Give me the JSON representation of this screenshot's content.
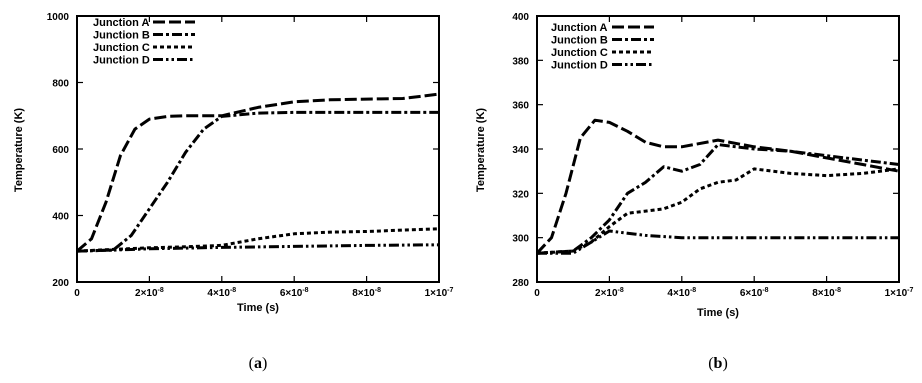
{
  "chart_data": [
    {
      "type": "line",
      "panel_label": "a",
      "xlabel": "Time (s)",
      "ylabel": "Temperature (K)",
      "xlim": [
        0,
        1e-07
      ],
      "ylim": [
        200,
        1000
      ],
      "x_ticks": [
        0,
        2e-08,
        4e-08,
        6e-08,
        8e-08,
        1e-07
      ],
      "x_tick_labels": [
        {
          "mant": "0",
          "exp": ""
        },
        {
          "mant": "2×10",
          "exp": "-8"
        },
        {
          "mant": "4×10",
          "exp": "-8"
        },
        {
          "mant": "6×10",
          "exp": "-8"
        },
        {
          "mant": "8×10",
          "exp": "-8"
        },
        {
          "mant": "1×10",
          "exp": "-7"
        }
      ],
      "y_ticks": [
        200,
        400,
        600,
        800,
        1000
      ],
      "y_tick_labels": [
        "200",
        "400",
        "600",
        "800",
        "1000"
      ],
      "legend_position": "top-left",
      "series": [
        {
          "name": "Junction A",
          "dash": "dash",
          "x": [
            0,
            4e-09,
            8e-09,
            1.2e-08,
            1.6e-08,
            2e-08,
            2.5e-08,
            3e-08,
            4e-08,
            5e-08,
            6e-08,
            7e-08,
            8e-08,
            9e-08,
            1e-07
          ],
          "y": [
            293,
            330,
            440,
            580,
            660,
            690,
            698,
            700,
            700,
            725,
            742,
            748,
            750,
            752,
            765
          ]
        },
        {
          "name": "Junction B",
          "dash": "dashdot",
          "x": [
            0,
            1e-08,
            1.5e-08,
            2e-08,
            2.5e-08,
            3e-08,
            3.5e-08,
            4e-08,
            5e-08,
            6e-08,
            7e-08,
            8e-08,
            9e-08,
            1e-07
          ],
          "y": [
            293,
            296,
            340,
            420,
            500,
            590,
            660,
            698,
            708,
            710,
            710,
            710,
            710,
            710
          ]
        },
        {
          "name": "Junction C",
          "dash": "dot",
          "x": [
            0,
            1e-08,
            2e-08,
            3e-08,
            4e-08,
            5e-08,
            6e-08,
            7e-08,
            8e-08,
            9e-08,
            1e-07
          ],
          "y": [
            293,
            298,
            303,
            306,
            310,
            330,
            345,
            350,
            352,
            356,
            360
          ]
        },
        {
          "name": "Junction D",
          "dash": "dashdotdot",
          "x": [
            0,
            1e-08,
            2e-08,
            4e-08,
            6e-08,
            8e-08,
            1e-07
          ],
          "y": [
            293,
            296,
            300,
            304,
            307,
            310,
            312
          ]
        }
      ]
    },
    {
      "type": "line",
      "panel_label": "b",
      "xlabel": "Time (s)",
      "ylabel": "Temperature (K)",
      "xlim": [
        0,
        1e-07
      ],
      "ylim": [
        280,
        400
      ],
      "x_ticks": [
        0,
        2e-08,
        4e-08,
        6e-08,
        8e-08,
        1e-07
      ],
      "x_tick_labels": [
        {
          "mant": "0",
          "exp": ""
        },
        {
          "mant": "2×10",
          "exp": "-8"
        },
        {
          "mant": "4×10",
          "exp": "-8"
        },
        {
          "mant": "6×10",
          "exp": "-8"
        },
        {
          "mant": "8×10",
          "exp": "-8"
        },
        {
          "mant": "1×10",
          "exp": "-7"
        }
      ],
      "y_ticks": [
        280,
        300,
        320,
        340,
        360,
        380,
        400
      ],
      "y_tick_labels": [
        "280",
        "300",
        "320",
        "340",
        "360",
        "380",
        "400"
      ],
      "legend_position": "top-left",
      "series": [
        {
          "name": "Junction A",
          "dash": "dash",
          "x": [
            0,
            4e-09,
            8e-09,
            1.2e-08,
            1.6e-08,
            2e-08,
            2.5e-08,
            3e-08,
            3.5e-08,
            4e-08,
            5e-08,
            6e-08,
            7e-08,
            8e-08,
            9e-08,
            1e-07
          ],
          "y": [
            293,
            300,
            320,
            345,
            353,
            352,
            348,
            343,
            341,
            341,
            344,
            341,
            339,
            336,
            333,
            330
          ]
        },
        {
          "name": "Junction B",
          "dash": "dashdot",
          "x": [
            0,
            1e-08,
            1.5e-08,
            2e-08,
            2.5e-08,
            3e-08,
            3.5e-08,
            4e-08,
            4.5e-08,
            5e-08,
            6e-08,
            7e-08,
            8e-08,
            9e-08,
            1e-07
          ],
          "y": [
            293,
            294,
            300,
            308,
            320,
            325,
            332,
            330,
            333,
            342,
            340,
            339,
            337,
            335,
            333
          ]
        },
        {
          "name": "Junction C",
          "dash": "dot",
          "x": [
            0,
            1e-08,
            1.5e-08,
            2e-08,
            2.5e-08,
            3e-08,
            3.5e-08,
            4e-08,
            4.5e-08,
            5e-08,
            5.5e-08,
            6e-08,
            7e-08,
            8e-08,
            9e-08,
            1e-07
          ],
          "y": [
            293,
            294,
            298,
            305,
            311,
            312,
            313,
            316,
            322,
            325,
            326,
            331,
            329,
            328,
            329,
            331
          ]
        },
        {
          "name": "Junction D",
          "dash": "dashdotdot",
          "x": [
            0,
            1e-08,
            1.5e-08,
            2e-08,
            3e-08,
            4e-08,
            5e-08,
            6e-08,
            7e-08,
            8e-08,
            9e-08,
            1e-07
          ],
          "y": [
            293,
            293,
            298,
            303,
            301,
            300,
            300,
            300,
            300,
            300,
            300,
            300
          ]
        }
      ]
    }
  ],
  "captions": [
    "a",
    "b"
  ]
}
